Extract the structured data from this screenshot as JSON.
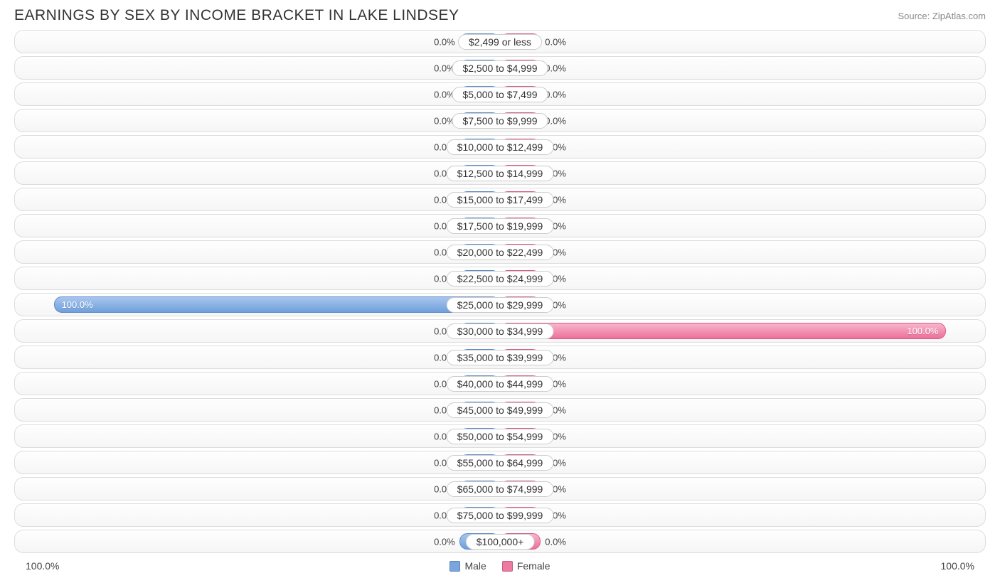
{
  "title": "EARNINGS BY SEX BY INCOME BRACKET IN LAKE LINDSEY",
  "source": "Source: ZipAtlas.com",
  "chart": {
    "type": "diverging-bar",
    "male_color": "#79a6e0",
    "female_color": "#ef7aa1",
    "row_border_color": "#dddddd",
    "row_bg_top": "#fefefe",
    "row_bg_bottom": "#f6f6f6",
    "min_bar_pct_visual": 4.2,
    "label_fontsize": 13,
    "bracket_fontsize": 14,
    "rows": [
      {
        "bracket": "$2,499 or less",
        "male_pct": 0.0,
        "female_pct": 0.0
      },
      {
        "bracket": "$2,500 to $4,999",
        "male_pct": 0.0,
        "female_pct": 0.0
      },
      {
        "bracket": "$5,000 to $7,499",
        "male_pct": 0.0,
        "female_pct": 0.0
      },
      {
        "bracket": "$7,500 to $9,999",
        "male_pct": 0.0,
        "female_pct": 0.0
      },
      {
        "bracket": "$10,000 to $12,499",
        "male_pct": 0.0,
        "female_pct": 0.0
      },
      {
        "bracket": "$12,500 to $14,999",
        "male_pct": 0.0,
        "female_pct": 0.0
      },
      {
        "bracket": "$15,000 to $17,499",
        "male_pct": 0.0,
        "female_pct": 0.0
      },
      {
        "bracket": "$17,500 to $19,999",
        "male_pct": 0.0,
        "female_pct": 0.0
      },
      {
        "bracket": "$20,000 to $22,499",
        "male_pct": 0.0,
        "female_pct": 0.0
      },
      {
        "bracket": "$22,500 to $24,999",
        "male_pct": 0.0,
        "female_pct": 0.0
      },
      {
        "bracket": "$25,000 to $29,999",
        "male_pct": 100.0,
        "female_pct": 0.0
      },
      {
        "bracket": "$30,000 to $34,999",
        "male_pct": 0.0,
        "female_pct": 100.0
      },
      {
        "bracket": "$35,000 to $39,999",
        "male_pct": 0.0,
        "female_pct": 0.0
      },
      {
        "bracket": "$40,000 to $44,999",
        "male_pct": 0.0,
        "female_pct": 0.0
      },
      {
        "bracket": "$45,000 to $49,999",
        "male_pct": 0.0,
        "female_pct": 0.0
      },
      {
        "bracket": "$50,000 to $54,999",
        "male_pct": 0.0,
        "female_pct": 0.0
      },
      {
        "bracket": "$55,000 to $64,999",
        "male_pct": 0.0,
        "female_pct": 0.0
      },
      {
        "bracket": "$65,000 to $74,999",
        "male_pct": 0.0,
        "female_pct": 0.0
      },
      {
        "bracket": "$75,000 to $99,999",
        "male_pct": 0.0,
        "female_pct": 0.0
      },
      {
        "bracket": "$100,000+",
        "male_pct": 0.0,
        "female_pct": 0.0
      }
    ]
  },
  "axis": {
    "left_label": "100.0%",
    "right_label": "100.0%"
  },
  "legend": {
    "male_label": "Male",
    "female_label": "Female"
  }
}
